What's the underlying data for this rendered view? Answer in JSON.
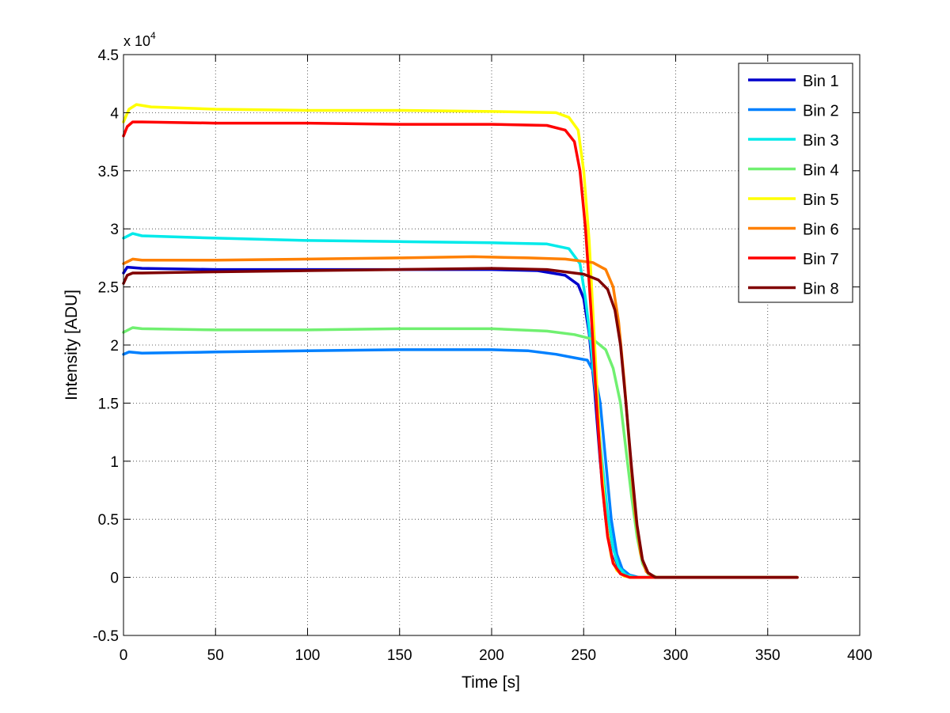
{
  "chart_data": {
    "type": "line",
    "title": "",
    "xlabel": "Time [s]",
    "ylabel": "Intensity [ADU]",
    "xlim": [
      0,
      400
    ],
    "ylim": [
      -0.5,
      4.5
    ],
    "y_multiplier_base": "x 10",
    "y_multiplier_exponent": "4",
    "x_ticks": [
      0,
      50,
      100,
      150,
      200,
      250,
      300,
      350,
      400
    ],
    "x_tick_labels": [
      "0",
      "50",
      "100",
      "150",
      "200",
      "250",
      "300",
      "350",
      "400"
    ],
    "y_ticks": [
      -0.5,
      0,
      0.5,
      1,
      1.5,
      2,
      2.5,
      3,
      3.5,
      4,
      4.5
    ],
    "y_tick_labels": [
      "-0.5",
      "0",
      "0.5",
      "1",
      "1.5",
      "2",
      "2.5",
      "3",
      "3.5",
      "4",
      "4.5"
    ],
    "grid": true,
    "legend_position": "top-right",
    "series": [
      {
        "name": "Bin 1",
        "color": "#0000cc",
        "points": [
          [
            0,
            2.62
          ],
          [
            2,
            2.67
          ],
          [
            10,
            2.66
          ],
          [
            50,
            2.65
          ],
          [
            100,
            2.65
          ],
          [
            150,
            2.65
          ],
          [
            200,
            2.65
          ],
          [
            225,
            2.64
          ],
          [
            240,
            2.6
          ],
          [
            247,
            2.52
          ],
          [
            250,
            2.4
          ],
          [
            253,
            2.1
          ],
          [
            256,
            1.6
          ],
          [
            259,
            1.0
          ],
          [
            262,
            0.5
          ],
          [
            265,
            0.2
          ],
          [
            268,
            0.07
          ],
          [
            272,
            0.02
          ],
          [
            277,
            0.0
          ],
          [
            366,
            0.0
          ]
        ]
      },
      {
        "name": "Bin 2",
        "color": "#0080ff",
        "points": [
          [
            0,
            1.92
          ],
          [
            3,
            1.94
          ],
          [
            10,
            1.93
          ],
          [
            50,
            1.94
          ],
          [
            100,
            1.95
          ],
          [
            150,
            1.96
          ],
          [
            200,
            1.96
          ],
          [
            220,
            1.95
          ],
          [
            235,
            1.92
          ],
          [
            245,
            1.89
          ],
          [
            252,
            1.87
          ],
          [
            256,
            1.75
          ],
          [
            259,
            1.5
          ],
          [
            262,
            1.0
          ],
          [
            265,
            0.5
          ],
          [
            268,
            0.2
          ],
          [
            271,
            0.07
          ],
          [
            275,
            0.02
          ],
          [
            280,
            0.0
          ],
          [
            366,
            0.0
          ]
        ]
      },
      {
        "name": "Bin 3",
        "color": "#00eaea",
        "points": [
          [
            0,
            2.92
          ],
          [
            5,
            2.96
          ],
          [
            10,
            2.94
          ],
          [
            50,
            2.92
          ],
          [
            100,
            2.9
          ],
          [
            150,
            2.89
          ],
          [
            200,
            2.88
          ],
          [
            230,
            2.87
          ],
          [
            242,
            2.83
          ],
          [
            248,
            2.7
          ],
          [
            251,
            2.4
          ],
          [
            254,
            2.0
          ],
          [
            257,
            1.5
          ],
          [
            260,
            1.0
          ],
          [
            263,
            0.55
          ],
          [
            266,
            0.25
          ],
          [
            269,
            0.09
          ],
          [
            273,
            0.02
          ],
          [
            278,
            0.0
          ],
          [
            366,
            0.0
          ]
        ]
      },
      {
        "name": "Bin 4",
        "color": "#70f070",
        "points": [
          [
            0,
            2.11
          ],
          [
            5,
            2.15
          ],
          [
            10,
            2.14
          ],
          [
            50,
            2.13
          ],
          [
            100,
            2.13
          ],
          [
            150,
            2.14
          ],
          [
            200,
            2.14
          ],
          [
            230,
            2.12
          ],
          [
            245,
            2.09
          ],
          [
            255,
            2.05
          ],
          [
            262,
            1.96
          ],
          [
            266,
            1.8
          ],
          [
            270,
            1.5
          ],
          [
            273,
            1.1
          ],
          [
            276,
            0.7
          ],
          [
            279,
            0.35
          ],
          [
            282,
            0.12
          ],
          [
            285,
            0.03
          ],
          [
            290,
            0.0
          ],
          [
            366,
            0.0
          ]
        ]
      },
      {
        "name": "Bin 5",
        "color": "#ffff00",
        "points": [
          [
            0,
            3.92
          ],
          [
            3,
            4.03
          ],
          [
            7,
            4.07
          ],
          [
            15,
            4.05
          ],
          [
            50,
            4.03
          ],
          [
            100,
            4.02
          ],
          [
            150,
            4.02
          ],
          [
            200,
            4.01
          ],
          [
            235,
            4.0
          ],
          [
            242,
            3.96
          ],
          [
            247,
            3.85
          ],
          [
            250,
            3.5
          ],
          [
            253,
            2.9
          ],
          [
            256,
            2.0
          ],
          [
            259,
            1.1
          ],
          [
            262,
            0.5
          ],
          [
            265,
            0.18
          ],
          [
            268,
            0.06
          ],
          [
            272,
            0.01
          ],
          [
            276,
            0.0
          ],
          [
            366,
            0.0
          ]
        ]
      },
      {
        "name": "Bin 6",
        "color": "#ff8000",
        "points": [
          [
            0,
            2.7
          ],
          [
            5,
            2.74
          ],
          [
            10,
            2.73
          ],
          [
            50,
            2.73
          ],
          [
            100,
            2.74
          ],
          [
            150,
            2.75
          ],
          [
            190,
            2.76
          ],
          [
            220,
            2.75
          ],
          [
            240,
            2.74
          ],
          [
            255,
            2.71
          ],
          [
            262,
            2.65
          ],
          [
            266,
            2.5
          ],
          [
            269,
            2.2
          ],
          [
            272,
            1.7
          ],
          [
            275,
            1.1
          ],
          [
            278,
            0.55
          ],
          [
            281,
            0.2
          ],
          [
            284,
            0.05
          ],
          [
            288,
            0.0
          ],
          [
            366,
            0.0
          ]
        ]
      },
      {
        "name": "Bin 7",
        "color": "#ff0000",
        "points": [
          [
            0,
            3.8
          ],
          [
            2,
            3.88
          ],
          [
            5,
            3.92
          ],
          [
            10,
            3.92
          ],
          [
            50,
            3.91
          ],
          [
            100,
            3.91
          ],
          [
            150,
            3.9
          ],
          [
            200,
            3.9
          ],
          [
            230,
            3.89
          ],
          [
            240,
            3.85
          ],
          [
            245,
            3.75
          ],
          [
            248,
            3.5
          ],
          [
            251,
            3.0
          ],
          [
            254,
            2.3
          ],
          [
            257,
            1.5
          ],
          [
            260,
            0.8
          ],
          [
            263,
            0.35
          ],
          [
            266,
            0.12
          ],
          [
            270,
            0.03
          ],
          [
            275,
            0.0
          ],
          [
            366,
            0.0
          ]
        ]
      },
      {
        "name": "Bin 8",
        "color": "#800000",
        "points": [
          [
            0,
            2.53
          ],
          [
            2,
            2.6
          ],
          [
            5,
            2.62
          ],
          [
            10,
            2.62
          ],
          [
            50,
            2.63
          ],
          [
            100,
            2.64
          ],
          [
            150,
            2.65
          ],
          [
            200,
            2.66
          ],
          [
            230,
            2.65
          ],
          [
            250,
            2.61
          ],
          [
            258,
            2.56
          ],
          [
            263,
            2.48
          ],
          [
            267,
            2.3
          ],
          [
            270,
            2.0
          ],
          [
            273,
            1.5
          ],
          [
            276,
            0.95
          ],
          [
            279,
            0.45
          ],
          [
            282,
            0.15
          ],
          [
            285,
            0.04
          ],
          [
            289,
            0.0
          ],
          [
            366,
            0.0
          ]
        ]
      }
    ]
  }
}
